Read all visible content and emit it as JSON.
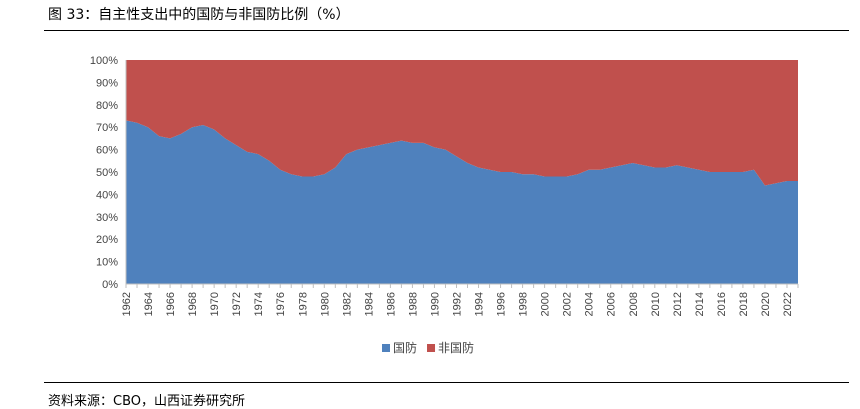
{
  "figure": {
    "title": "图 33：自主性支出中的国防与非国防比例（%）",
    "source": "资料来源：CBO，山西证券研究所"
  },
  "chart_data": {
    "type": "area",
    "stacked": true,
    "percent": true,
    "title": "",
    "xlabel": "",
    "ylabel": "",
    "ylim": [
      0,
      100
    ],
    "y_ticks": [
      0,
      10,
      20,
      30,
      40,
      50,
      60,
      70,
      80,
      90,
      100
    ],
    "y_tick_labels": [
      "0%",
      "10%",
      "20%",
      "30%",
      "40%",
      "50%",
      "60%",
      "70%",
      "80%",
      "90%",
      "100%"
    ],
    "x": [
      1962,
      1963,
      1964,
      1965,
      1966,
      1967,
      1968,
      1969,
      1970,
      1971,
      1972,
      1973,
      1974,
      1975,
      1976,
      1977,
      1978,
      1979,
      1980,
      1981,
      1982,
      1983,
      1984,
      1985,
      1986,
      1987,
      1988,
      1989,
      1990,
      1991,
      1992,
      1993,
      1994,
      1995,
      1996,
      1997,
      1998,
      1999,
      2000,
      2001,
      2002,
      2003,
      2004,
      2005,
      2006,
      2007,
      2008,
      2009,
      2010,
      2011,
      2012,
      2013,
      2014,
      2015,
      2016,
      2017,
      2018,
      2019,
      2020,
      2021,
      2022,
      2023
    ],
    "x_tick_labels": [
      "1962",
      "1964",
      "1966",
      "1968",
      "1970",
      "1972",
      "1974",
      "1976",
      "1978",
      "1980",
      "1982",
      "1984",
      "1986",
      "1988",
      "1990",
      "1992",
      "1994",
      "1996",
      "1998",
      "2000",
      "2002",
      "2004",
      "2006",
      "2008",
      "2010",
      "2012",
      "2014",
      "2016",
      "2018",
      "2020",
      "2022"
    ],
    "legend_position": "bottom",
    "series": [
      {
        "name": "国防",
        "color": "#4F81BD",
        "values": [
          73,
          72,
          70,
          66,
          65,
          67,
          70,
          71,
          69,
          65,
          62,
          59,
          58,
          55,
          51,
          49,
          48,
          48,
          49,
          52,
          58,
          60,
          61,
          62,
          63,
          64,
          63,
          63,
          61,
          60,
          57,
          54,
          52,
          51,
          50,
          50,
          49,
          49,
          48,
          48,
          48,
          49,
          51,
          51,
          52,
          53,
          54,
          53,
          52,
          52,
          53,
          52,
          51,
          50,
          50,
          50,
          50,
          51,
          44,
          45,
          46,
          46
        ]
      },
      {
        "name": "非国防",
        "color": "#C0504D",
        "values": [
          27,
          28,
          30,
          34,
          35,
          33,
          30,
          29,
          31,
          35,
          38,
          41,
          42,
          45,
          49,
          51,
          52,
          52,
          51,
          48,
          42,
          40,
          39,
          38,
          37,
          36,
          37,
          37,
          39,
          40,
          43,
          46,
          48,
          49,
          50,
          50,
          51,
          51,
          52,
          52,
          52,
          51,
          49,
          49,
          48,
          47,
          46,
          47,
          48,
          48,
          47,
          48,
          49,
          50,
          50,
          50,
          50,
          49,
          56,
          55,
          54,
          54
        ]
      }
    ]
  }
}
